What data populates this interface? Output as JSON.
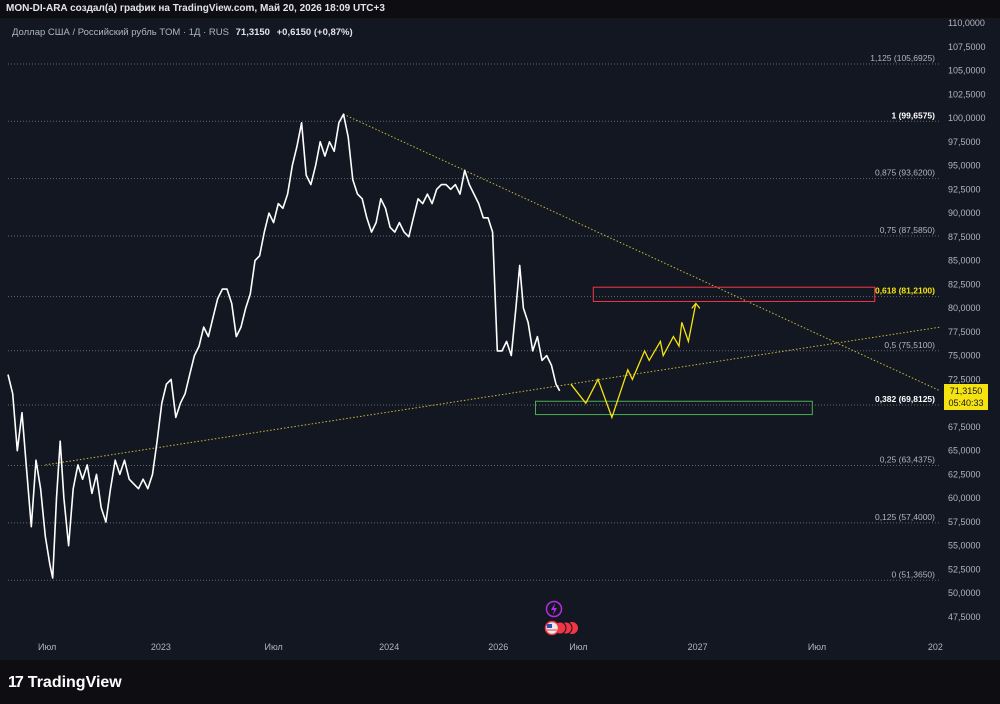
{
  "header": {
    "title": "MON-DI-ARA создал(а) график на TradingView.com, Май 20, 2026 18:09 UTC+3"
  },
  "legend": {
    "symbol": "Доллар США / Российский рубль TOM · 1Д · RUS",
    "price": "71,3150",
    "change": "+0,6150 (+0,87%)"
  },
  "price_tag": {
    "price": "71,3150",
    "countdown": "05:40:33"
  },
  "branding": {
    "logo_mark": "17",
    "logo_text": "TradingView"
  },
  "colors": {
    "background": "#131722",
    "price_line": "#ffffff",
    "projection": "#f5e211",
    "resistance_box": "#f23645",
    "support_box": "#4caf50",
    "highlight": "#f5e211"
  },
  "chart_data": {
    "type": "line",
    "y_axis": {
      "min": 46.5,
      "max": 110,
      "ticks": [
        "47,5000",
        "50,0000",
        "52,5000",
        "55,0000",
        "57,5000",
        "60,0000",
        "62,5000",
        "65,0000",
        "67,5000",
        "70,0000",
        "72,5000",
        "75,0000",
        "77,5000",
        "80,0000",
        "82,5000",
        "85,0000",
        "87,5000",
        "90,0000",
        "92,5000",
        "95,0000",
        "97,5000",
        "100,0000",
        "102,5000",
        "105,0000",
        "107,5000",
        "110,0000"
      ]
    },
    "x_axis": {
      "labels": [
        "Июл",
        "2023",
        "Июл",
        "2024",
        "2026",
        "Июл",
        "2027",
        "Июл",
        "202"
      ]
    },
    "fib_levels": [
      {
        "label": "1,125 (105,6925)",
        "value": 105.6925
      },
      {
        "label": "1 (99,6575)",
        "value": 99.6575
      },
      {
        "label": "0,875 (93,6200)",
        "value": 93.62
      },
      {
        "label": "0,75 (87,5850)",
        "value": 87.585
      },
      {
        "label": "0,618 (81,2100)",
        "value": 81.21
      },
      {
        "label": "0,5 (75,5100)",
        "value": 75.51
      },
      {
        "label": "0,382 (69,8125)",
        "value": 69.8125
      },
      {
        "label": "0,25 (63,4375)",
        "value": 63.4375
      },
      {
        "label": "0,125 (57,4000)",
        "value": 57.4
      },
      {
        "label": "0 (51,3650)",
        "value": 51.365
      }
    ],
    "price_series": [
      [
        0.0,
        73.0
      ],
      [
        0.5,
        71.0
      ],
      [
        1.0,
        65.0
      ],
      [
        1.5,
        69.0
      ],
      [
        2.0,
        63.0
      ],
      [
        2.5,
        57.0
      ],
      [
        3.0,
        64.0
      ],
      [
        3.5,
        61.0
      ],
      [
        4.0,
        56.0
      ],
      [
        4.5,
        53.0
      ],
      [
        4.8,
        51.6
      ],
      [
        5.2,
        60.0
      ],
      [
        5.6,
        66.0
      ],
      [
        6.0,
        60.0
      ],
      [
        6.5,
        55.0
      ],
      [
        7.0,
        61.0
      ],
      [
        7.5,
        63.5
      ],
      [
        8.0,
        62.0
      ],
      [
        8.5,
        63.5
      ],
      [
        9.0,
        60.5
      ],
      [
        9.5,
        62.5
      ],
      [
        10.0,
        59.0
      ],
      [
        10.5,
        57.5
      ],
      [
        11.0,
        61.0
      ],
      [
        11.5,
        64.0
      ],
      [
        12.0,
        62.5
      ],
      [
        12.5,
        64.0
      ],
      [
        13.0,
        62.0
      ],
      [
        13.5,
        61.5
      ],
      [
        14.0,
        61.0
      ],
      [
        14.5,
        62.0
      ],
      [
        15.0,
        61.0
      ],
      [
        15.5,
        62.5
      ],
      [
        16.0,
        66.0
      ],
      [
        16.5,
        70.0
      ],
      [
        17.0,
        72.0
      ],
      [
        17.5,
        72.5
      ],
      [
        18.0,
        68.5
      ],
      [
        18.5,
        70.0
      ],
      [
        19.0,
        71.0
      ],
      [
        19.5,
        73.0
      ],
      [
        20.0,
        75.0
      ],
      [
        20.5,
        76.0
      ],
      [
        21.0,
        78.0
      ],
      [
        21.5,
        77.0
      ],
      [
        22.0,
        79.0
      ],
      [
        22.5,
        81.0
      ],
      [
        23.0,
        82.0
      ],
      [
        23.5,
        82.0
      ],
      [
        24.0,
        80.5
      ],
      [
        24.5,
        77.0
      ],
      [
        25.0,
        78.0
      ],
      [
        25.5,
        80.0
      ],
      [
        26.0,
        81.5
      ],
      [
        26.5,
        85.0
      ],
      [
        27.0,
        85.5
      ],
      [
        27.5,
        88.0
      ],
      [
        28.0,
        90.0
      ],
      [
        28.5,
        89.0
      ],
      [
        29.0,
        91.0
      ],
      [
        29.5,
        90.5
      ],
      [
        30.0,
        92.0
      ],
      [
        30.5,
        95.0
      ],
      [
        31.0,
        97.0
      ],
      [
        31.5,
        99.5
      ],
      [
        32.0,
        94.0
      ],
      [
        32.5,
        93.0
      ],
      [
        33.0,
        95.0
      ],
      [
        33.5,
        97.5
      ],
      [
        34.0,
        96.0
      ],
      [
        34.5,
        97.5
      ],
      [
        35.0,
        96.5
      ],
      [
        35.5,
        99.5
      ],
      [
        36.0,
        100.4
      ],
      [
        36.5,
        98.0
      ],
      [
        37.0,
        93.5
      ],
      [
        37.5,
        92.0
      ],
      [
        38.0,
        91.5
      ],
      [
        38.5,
        89.5
      ],
      [
        39.0,
        88.0
      ],
      [
        39.5,
        89.0
      ],
      [
        40.0,
        91.5
      ],
      [
        40.5,
        90.5
      ],
      [
        41.0,
        88.5
      ],
      [
        41.5,
        88.0
      ],
      [
        42.0,
        89.0
      ],
      [
        42.5,
        88.0
      ],
      [
        43.0,
        87.5
      ],
      [
        43.5,
        89.5
      ],
      [
        44.0,
        91.5
      ],
      [
        44.5,
        91.0
      ],
      [
        45.0,
        92.0
      ],
      [
        45.5,
        91.0
      ],
      [
        46.0,
        92.5
      ],
      [
        46.5,
        93.0
      ],
      [
        47.0,
        93.0
      ],
      [
        47.5,
        92.5
      ],
      [
        48.0,
        93.0
      ],
      [
        48.5,
        92.0
      ],
      [
        49.0,
        94.5
      ],
      [
        49.5,
        93.0
      ],
      [
        50.0,
        92.0
      ],
      [
        50.5,
        91.0
      ],
      [
        51.0,
        89.5
      ],
      [
        51.5,
        89.5
      ],
      [
        52.0,
        88.0
      ],
      [
        52.5,
        75.5
      ],
      [
        53.0,
        75.5
      ],
      [
        53.5,
        76.5
      ],
      [
        54.0,
        75.0
      ],
      [
        54.5,
        80.0
      ],
      [
        54.9,
        84.5
      ],
      [
        55.3,
        80.0
      ],
      [
        55.8,
        78.5
      ],
      [
        56.3,
        75.5
      ],
      [
        56.8,
        77.0
      ],
      [
        57.3,
        74.5
      ],
      [
        57.8,
        75.0
      ],
      [
        58.3,
        74.0
      ],
      [
        58.8,
        72.0
      ],
      [
        59.2,
        71.3
      ]
    ],
    "projection": [
      [
        60.4,
        72.0
      ],
      [
        62.0,
        70.0
      ],
      [
        63.3,
        72.5
      ],
      [
        64.8,
        68.5
      ],
      [
        66.5,
        73.5
      ],
      [
        67.0,
        72.5
      ],
      [
        68.3,
        75.5
      ],
      [
        68.8,
        74.5
      ],
      [
        70.0,
        76.5
      ],
      [
        70.3,
        75.0
      ],
      [
        71.4,
        77.0
      ],
      [
        72.0,
        76.0
      ],
      [
        72.3,
        78.5
      ],
      [
        73.0,
        76.5
      ],
      [
        73.8,
        80.5
      ]
    ],
    "trendlines": [
      {
        "from": [
          4.0,
          63.5
        ],
        "to": [
          100.0,
          78.0
        ]
      },
      {
        "from": [
          36.0,
          100.4
        ],
        "to": [
          100.0,
          71.3
        ]
      }
    ],
    "zones": [
      {
        "name": "resistance",
        "x": [
          62.8,
          93.0
        ],
        "y": [
          80.7,
          82.2
        ]
      },
      {
        "name": "support",
        "x": [
          56.6,
          86.3
        ],
        "y": [
          68.8,
          70.2
        ]
      }
    ]
  }
}
